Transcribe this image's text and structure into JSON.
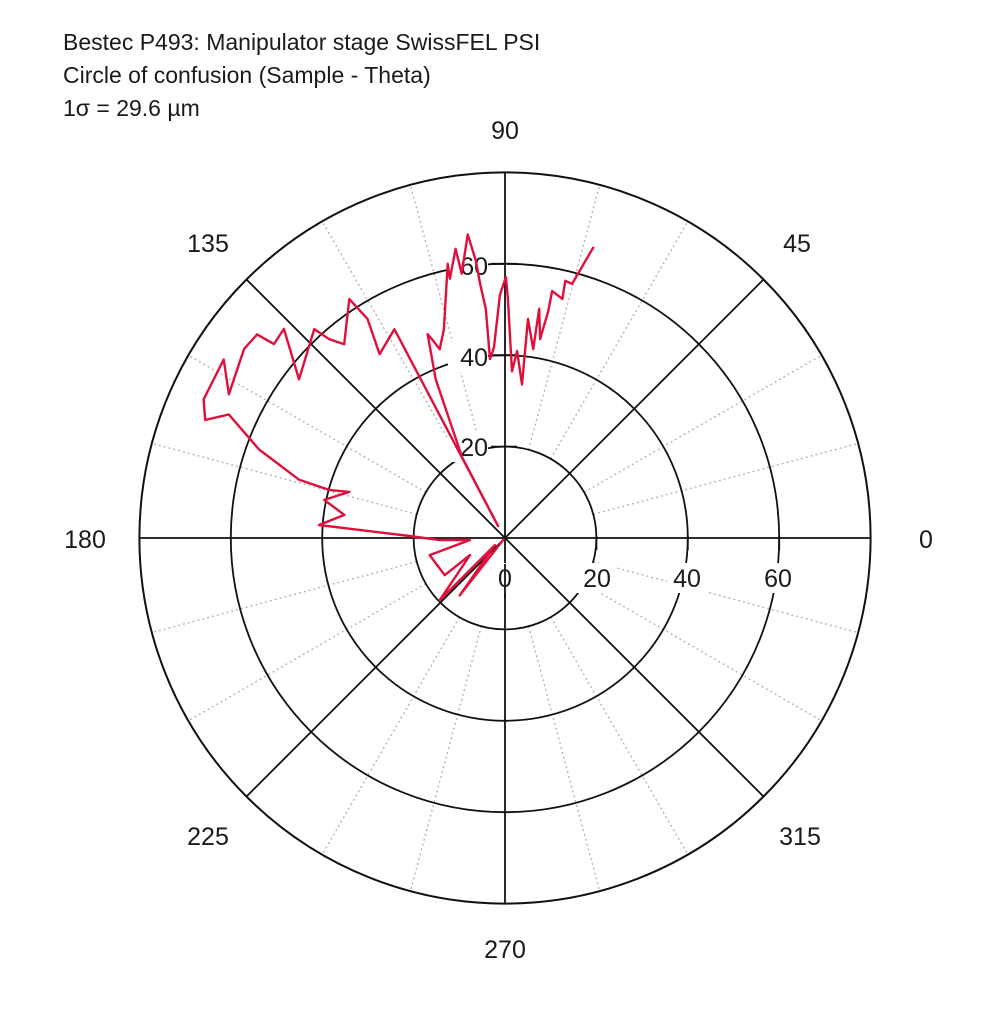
{
  "header": {
    "title_line1": "Bestec P493: Manipulator stage SwissFEL PSI",
    "title_line2": "Circle of confusion (Sample - Theta)",
    "sigma_label": "1σ = 29.6 µm"
  },
  "colors": {
    "trace": "#e0103c",
    "grid_solid": "#111111",
    "grid_dotted": "#b0b0b0",
    "text": "#1a1a1a"
  },
  "chart_data": {
    "type": "polar-line",
    "title": "Bestec P493: Manipulator stage SwissFEL PSI",
    "subtitle": "Circle of confusion (Sample - Theta)",
    "annotation": "1σ = 29.6 µm",
    "unit": "µm",
    "r_range": [
      0,
      80
    ],
    "r_ticks": [
      0,
      20,
      40,
      60
    ],
    "r_rings": [
      20,
      40,
      60,
      80
    ],
    "angle_labels": [
      0,
      45,
      90,
      135,
      180,
      225,
      270,
      315
    ],
    "angle_solid_spokes_deg": [
      0,
      45,
      90,
      135,
      180,
      225,
      270,
      315
    ],
    "angle_dotted_spokes_step_deg": 15,
    "grid": true,
    "legend": null,
    "series": [
      {
        "name": "Sample - Theta",
        "points_theta_r": [
          [
            73.1,
            66.4
          ],
          [
            73.8,
            63.2
          ],
          [
            75.2,
            57.5
          ],
          [
            76.8,
            57.8
          ],
          [
            76.5,
            53.8
          ],
          [
            79.2,
            55.0
          ],
          [
            79.2,
            50.6
          ],
          [
            80.0,
            44.2
          ],
          [
            81.5,
            50.7
          ],
          [
            81.5,
            41.8
          ],
          [
            84.0,
            48.2
          ],
          [
            83.7,
            33.8
          ],
          [
            86.3,
            41.0
          ],
          [
            87.6,
            36.5
          ],
          [
            89.3,
            52.3
          ],
          [
            89.8,
            57.1
          ],
          [
            91.2,
            53.2
          ],
          [
            93.3,
            41.8
          ],
          [
            94.8,
            39.3
          ],
          [
            94.8,
            50.3
          ],
          [
            95.6,
            55.9
          ],
          [
            96.0,
            61.0
          ],
          [
            97.0,
            66.9
          ],
          [
            99.3,
            58.6
          ],
          [
            99.7,
            64.2
          ],
          [
            102.0,
            58.0
          ],
          [
            101.8,
            61.3
          ],
          [
            106.3,
            47.6
          ],
          [
            109.1,
            43.7
          ],
          [
            110.2,
            46.4
          ],
          [
            110.8,
            47.7
          ],
          [
            113.6,
            37.9
          ],
          [
            118.0,
            20.0
          ],
          [
            120.0,
            3.0
          ],
          [
            117.9,
            51.7
          ],
          [
            124.3,
            48.7
          ],
          [
            122.1,
            56.6
          ],
          [
            123.1,
            62.4
          ],
          [
            129.7,
            55.1
          ],
          [
            131.5,
            58.1
          ],
          [
            132.4,
            61.9
          ],
          [
            142.4,
            56.9
          ],
          [
            136.6,
            66.6
          ],
          [
            140.0,
            66.0
          ],
          [
            140.6,
            70.2
          ],
          [
            144.1,
            70.5
          ],
          [
            152.5,
            68.1
          ],
          [
            147.6,
            72.9
          ],
          [
            155.3,
            72.6
          ],
          [
            158.5,
            70.5
          ],
          [
            155.9,
            66.2
          ],
          [
            160.2,
            57.2
          ],
          [
            164.2,
            46.8
          ],
          [
            164.7,
            39.9
          ],
          [
            163.5,
            35.5
          ],
          [
            168.1,
            40.4
          ],
          [
            171.8,
            35.5
          ],
          [
            176.0,
            40.8
          ],
          [
            176.8,
            31.9
          ],
          [
            178.8,
            20.9
          ],
          [
            181.8,
            14.3
          ],
          [
            183.3,
            7.7
          ],
          [
            192.8,
            16.9
          ],
          [
            211.7,
            15.5
          ],
          [
            205.9,
            8.5
          ],
          [
            223.6,
            19.7
          ],
          [
            215.0,
            2.7
          ],
          [
            231.7,
            16.0
          ],
          [
            225.0,
            0.5
          ]
        ]
      }
    ]
  }
}
